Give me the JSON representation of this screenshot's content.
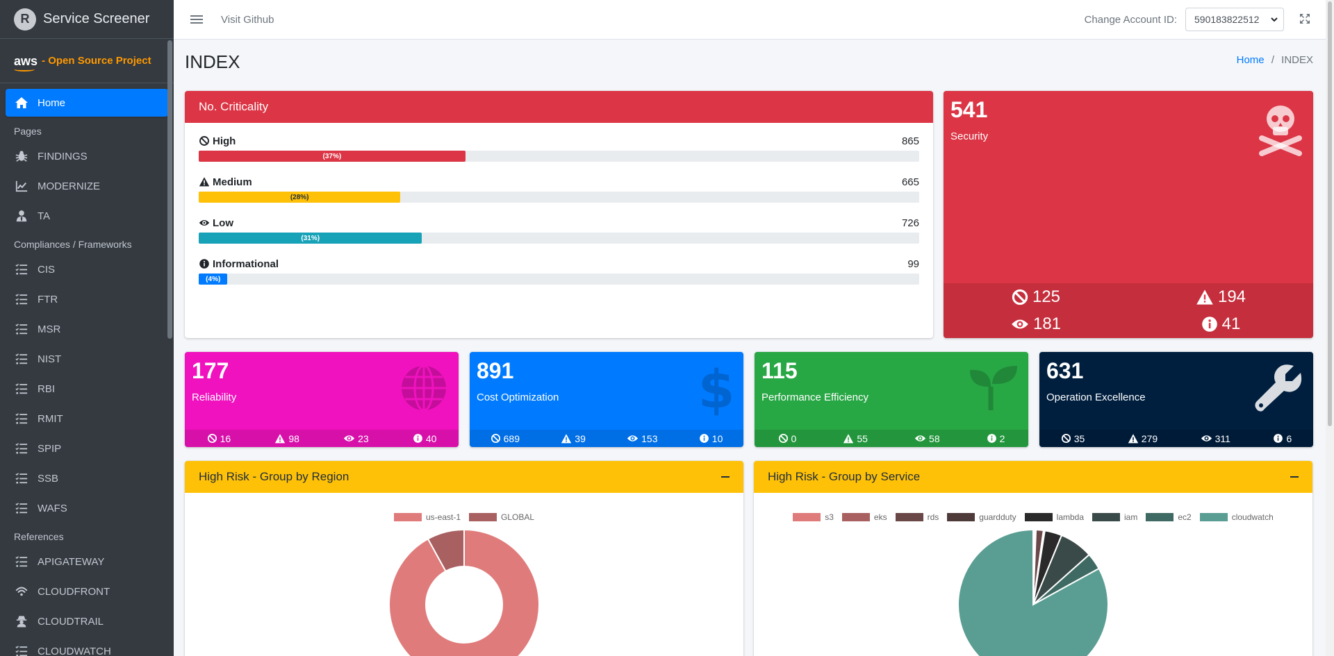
{
  "app": {
    "title": "Service Screener",
    "logo_letter": "R",
    "aws_text": "aws",
    "project_label": "- Open Source Project"
  },
  "sidebar": {
    "home": "Home",
    "section_pages": "Pages",
    "pages": [
      {
        "label": "FINDINGS",
        "icon": "bug-icon"
      },
      {
        "label": "MODERNIZE",
        "icon": "chart-line-icon"
      },
      {
        "label": "TA",
        "icon": "user-tie-icon"
      }
    ],
    "section_compliance": "Compliances / Frameworks",
    "frameworks": [
      "CIS",
      "FTR",
      "MSR",
      "NIST",
      "RBI",
      "RMIT",
      "SPIP",
      "SSB",
      "WAFS"
    ],
    "section_references": "References",
    "references": [
      {
        "label": "APIGATEWAY",
        "icon": "list-icon"
      },
      {
        "label": "CLOUDFRONT",
        "icon": "wifi-icon"
      },
      {
        "label": "CLOUDTRAIL",
        "icon": "user-secret-icon"
      },
      {
        "label": "CLOUDWATCH",
        "icon": "list-icon"
      }
    ]
  },
  "topbar": {
    "visit": "Visit Github",
    "account_label": "Change Account ID:",
    "account_value": "590183822512"
  },
  "page": {
    "title": "INDEX",
    "breadcrumb_home": "Home",
    "breadcrumb_sep": "/",
    "breadcrumb_current": "INDEX"
  },
  "criticality": {
    "title": "No. Criticality",
    "rows": [
      {
        "name": "High",
        "count": "865",
        "pct_label": "(37%)",
        "pct": 37,
        "color": "#dc3545",
        "text_color": "#ffffff",
        "icon": "ban-icon"
      },
      {
        "name": "Medium",
        "count": "665",
        "pct_label": "(28%)",
        "pct": 28,
        "color": "#ffc107",
        "text_color": "#1f2d3d",
        "icon": "warning-icon"
      },
      {
        "name": "Low",
        "count": "726",
        "pct_label": "(31%)",
        "pct": 31,
        "color": "#17a2b8",
        "text_color": "#ffffff",
        "icon": "eye-icon"
      },
      {
        "name": "Informational",
        "count": "99",
        "pct_label": "(4%)",
        "pct": 4,
        "color": "#007bff",
        "text_color": "#ffffff",
        "icon": "info-icon"
      }
    ]
  },
  "security": {
    "value": "541",
    "label": "Security",
    "high": "125",
    "medium": "194",
    "low": "181",
    "info": "41",
    "color": "#dc3545",
    "icon": "skull-crossbones-icon"
  },
  "pillars": [
    {
      "value": "177",
      "label": "Reliability",
      "high": "16",
      "medium": "98",
      "low": "23",
      "info": "40",
      "color": "#f012be",
      "icon": "globe-icon"
    },
    {
      "value": "891",
      "label": "Cost Optimization",
      "high": "689",
      "medium": "39",
      "low": "153",
      "info": "10",
      "color": "#007bff",
      "icon": "dollar-icon"
    },
    {
      "value": "115",
      "label": "Performance Efficiency",
      "high": "0",
      "medium": "55",
      "low": "58",
      "info": "2",
      "color": "#28a745",
      "icon": "seedling-icon"
    },
    {
      "value": "631",
      "label": "Operation Excellence",
      "high": "35",
      "medium": "279",
      "low": "311",
      "info": "6",
      "color": "#001f3f",
      "icon": "wrench-icon"
    }
  ],
  "charts": {
    "region": {
      "title": "High Risk - Group by Region",
      "chart_data": {
        "type": "pie",
        "categories": [
          "us-east-1",
          "GLOBAL"
        ],
        "values": [
          92,
          8
        ],
        "colors": [
          "#e07b7b",
          "#a86060"
        ],
        "donut": true,
        "legend": "top"
      }
    },
    "service": {
      "title": "High Risk - Group by Service",
      "chart_data": {
        "type": "pie",
        "categories": [
          "s3",
          "eks",
          "rds",
          "guardduty",
          "lambda",
          "iam",
          "ec2",
          "cloudwatch"
        ],
        "values": [
          0.3,
          0.3,
          1.6,
          0.3,
          3.7,
          7.2,
          3.6,
          83
        ],
        "colors": [
          "#e07b7b",
          "#a86060",
          "#6b4848",
          "#4f3a3a",
          "#2a2a2a",
          "#3a4a48",
          "#3f6a63",
          "#5a9e93"
        ],
        "donut": false,
        "legend": "top"
      }
    }
  }
}
